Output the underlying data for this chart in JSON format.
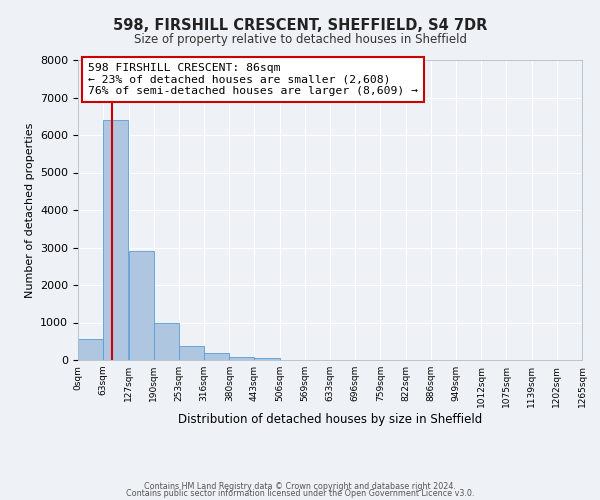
{
  "title": "598, FIRSHILL CRESCENT, SHEFFIELD, S4 7DR",
  "subtitle": "Size of property relative to detached houses in Sheffield",
  "xlabel": "Distribution of detached houses by size in Sheffield",
  "ylabel": "Number of detached properties",
  "bin_labels": [
    "0sqm",
    "63sqm",
    "127sqm",
    "190sqm",
    "253sqm",
    "316sqm",
    "380sqm",
    "443sqm",
    "506sqm",
    "569sqm",
    "633sqm",
    "696sqm",
    "759sqm",
    "822sqm",
    "886sqm",
    "949sqm",
    "1012sqm",
    "1075sqm",
    "1139sqm",
    "1202sqm",
    "1265sqm"
  ],
  "bar_values": [
    560,
    6400,
    2920,
    980,
    370,
    175,
    90,
    50,
    0,
    0,
    0,
    0,
    0,
    0,
    0,
    0,
    0,
    0,
    0,
    0
  ],
  "bar_color": "#aec6df",
  "bar_edge_color": "#5b9bd5",
  "vline_x": 86,
  "vline_color": "#cc0000",
  "ylim": [
    0,
    8000
  ],
  "yticks": [
    0,
    1000,
    2000,
    3000,
    4000,
    5000,
    6000,
    7000,
    8000
  ],
  "annotation_text": "598 FIRSHILL CRESCENT: 86sqm\n← 23% of detached houses are smaller (2,608)\n76% of semi-detached houses are larger (8,609) →",
  "annotation_box_color": "#ffffff",
  "annotation_box_edge": "#cc0000",
  "footer1": "Contains HM Land Registry data © Crown copyright and database right 2024.",
  "footer2": "Contains public sector information licensed under the Open Government Licence v3.0.",
  "bg_color": "#eef2f7",
  "grid_color": "#ffffff",
  "bin_starts": [
    0,
    63,
    127,
    190,
    253,
    316,
    380,
    443,
    506,
    569,
    633,
    696,
    759,
    822,
    886,
    949,
    1012,
    1075,
    1139,
    1202
  ],
  "bin_edges": [
    0,
    63,
    127,
    190,
    253,
    316,
    380,
    443,
    506,
    569,
    633,
    696,
    759,
    822,
    886,
    949,
    1012,
    1075,
    1139,
    1202,
    1265
  ],
  "xlim": [
    0,
    1265
  ],
  "bin_width": 63
}
